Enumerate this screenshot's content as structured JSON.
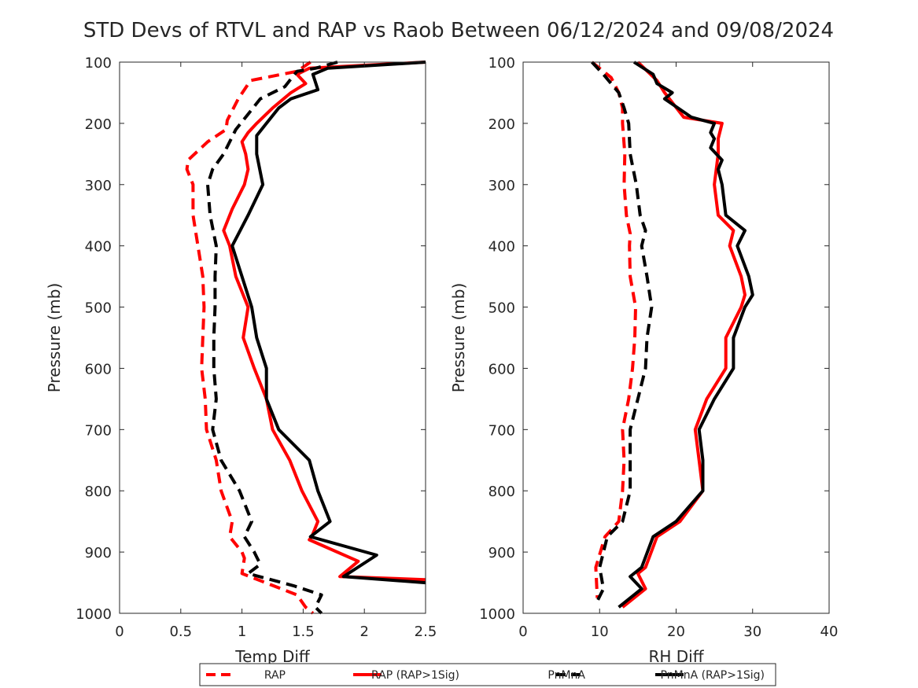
{
  "title": "STD Devs of RTVL and RAP vs Raob Between 06/12/2024 and 09/08/2024",
  "colors": {
    "rap": "#ff0000",
    "pnmna": "#000000",
    "axis": "#262626"
  },
  "legend": {
    "placement": "bottom-center",
    "entries": [
      {
        "label": "RAP",
        "color": "#ff0000",
        "style": "dashed"
      },
      {
        "label": "RAP (RAP>1Sig)",
        "color": "#ff0000",
        "style": "solid"
      },
      {
        "label": "PnMnA",
        "color": "#000000",
        "style": "dashed"
      },
      {
        "label": "PnMnA (RAP>1Sig)",
        "color": "#000000",
        "style": "solid"
      }
    ]
  },
  "chart_data": [
    {
      "type": "line",
      "xlabel": "Temp Diff",
      "ylabel": "Pressure (mb)",
      "xlim": [
        0,
        2.5
      ],
      "ylim": [
        100,
        1000
      ],
      "y_reversed": true,
      "xticks": [
        "0",
        "0.5",
        "1",
        "1.5",
        "2",
        "2.5"
      ],
      "yticks": [
        "100",
        "200",
        "300",
        "400",
        "500",
        "600",
        "700",
        "800",
        "900",
        "1000"
      ],
      "grid": false,
      "series": [
        {
          "name": "RAP",
          "color": "#ff0000",
          "dashed": true,
          "points": [
            [
              1.56,
              100
            ],
            [
              1.45,
              115
            ],
            [
              1.07,
              130
            ],
            [
              0.97,
              160
            ],
            [
              0.88,
              195
            ],
            [
              0.87,
              210
            ],
            [
              0.72,
              230
            ],
            [
              0.56,
              260
            ],
            [
              0.55,
              275
            ],
            [
              0.6,
              300
            ],
            [
              0.6,
              350
            ],
            [
              0.64,
              400
            ],
            [
              0.68,
              450
            ],
            [
              0.69,
              500
            ],
            [
              0.68,
              550
            ],
            [
              0.67,
              600
            ],
            [
              0.7,
              650
            ],
            [
              0.71,
              700
            ],
            [
              0.79,
              750
            ],
            [
              0.83,
              800
            ],
            [
              0.92,
              850
            ],
            [
              0.9,
              875
            ],
            [
              1.0,
              900
            ],
            [
              1.02,
              910
            ],
            [
              1.0,
              935
            ],
            [
              1.32,
              960
            ],
            [
              1.45,
              970
            ],
            [
              1.52,
              990
            ],
            [
              1.58,
              1000
            ]
          ]
        },
        {
          "name": "RAP (RAP>1Sig)",
          "color": "#ff0000",
          "dashed": false,
          "points": [
            [
              2.5,
              100
            ],
            [
              1.55,
              110
            ],
            [
              1.45,
              120
            ],
            [
              1.52,
              135
            ],
            [
              1.4,
              150
            ],
            [
              1.25,
              175
            ],
            [
              1.12,
              200
            ],
            [
              1.05,
              215
            ],
            [
              1.0,
              230
            ],
            [
              1.03,
              250
            ],
            [
              1.05,
              275
            ],
            [
              1.02,
              300
            ],
            [
              0.92,
              340
            ],
            [
              0.85,
              375
            ],
            [
              0.9,
              400
            ],
            [
              0.95,
              450
            ],
            [
              1.05,
              500
            ],
            [
              1.01,
              550
            ],
            [
              1.1,
              600
            ],
            [
              1.2,
              650
            ],
            [
              1.25,
              700
            ],
            [
              1.39,
              750
            ],
            [
              1.49,
              800
            ],
            [
              1.62,
              850
            ],
            [
              1.57,
              875
            ],
            [
              1.55,
              880
            ],
            [
              1.95,
              915
            ],
            [
              1.8,
              940
            ],
            [
              2.5,
              945
            ]
          ]
        },
        {
          "name": "PnMnA",
          "color": "#000000",
          "dashed": true,
          "points": [
            [
              1.78,
              100
            ],
            [
              1.6,
              110
            ],
            [
              1.45,
              115
            ],
            [
              1.35,
              140
            ],
            [
              1.15,
              160
            ],
            [
              1.05,
              185
            ],
            [
              0.95,
              210
            ],
            [
              0.85,
              250
            ],
            [
              0.76,
              275
            ],
            [
              0.72,
              300
            ],
            [
              0.74,
              350
            ],
            [
              0.79,
              400
            ],
            [
              0.78,
              450
            ],
            [
              0.78,
              500
            ],
            [
              0.77,
              550
            ],
            [
              0.77,
              600
            ],
            [
              0.79,
              650
            ],
            [
              0.76,
              700
            ],
            [
              0.83,
              750
            ],
            [
              0.98,
              800
            ],
            [
              1.08,
              850
            ],
            [
              1.02,
              875
            ],
            [
              1.1,
              900
            ],
            [
              1.15,
              920
            ],
            [
              1.05,
              935
            ],
            [
              1.42,
              955
            ],
            [
              1.65,
              970
            ],
            [
              1.6,
              990
            ],
            [
              1.65,
              1000
            ]
          ]
        },
        {
          "name": "PnMnA (RAP>1Sig)",
          "color": "#000000",
          "dashed": false,
          "points": [
            [
              2.5,
              100
            ],
            [
              1.7,
              110
            ],
            [
              1.58,
              120
            ],
            [
              1.62,
              145
            ],
            [
              1.4,
              160
            ],
            [
              1.3,
              175
            ],
            [
              1.2,
              200
            ],
            [
              1.12,
              220
            ],
            [
              1.12,
              250
            ],
            [
              1.17,
              300
            ],
            [
              1.05,
              350
            ],
            [
              0.92,
              400
            ],
            [
              1.0,
              450
            ],
            [
              1.08,
              500
            ],
            [
              1.12,
              550
            ],
            [
              1.2,
              600
            ],
            [
              1.2,
              650
            ],
            [
              1.3,
              700
            ],
            [
              1.55,
              750
            ],
            [
              1.62,
              800
            ],
            [
              1.72,
              850
            ],
            [
              1.56,
              875
            ],
            [
              2.1,
              905
            ],
            [
              1.83,
              940
            ],
            [
              2.5,
              950
            ]
          ]
        }
      ]
    },
    {
      "type": "line",
      "xlabel": "RH Diff",
      "ylabel": "Pressure (mb)",
      "xlim": [
        0,
        40
      ],
      "ylim": [
        100,
        1000
      ],
      "y_reversed": true,
      "xticks": [
        "0",
        "10",
        "20",
        "30",
        "40"
      ],
      "yticks": [
        "100",
        "200",
        "300",
        "400",
        "500",
        "600",
        "700",
        "800",
        "900",
        "1000"
      ],
      "grid": false,
      "series": [
        {
          "name": "RAP",
          "color": "#ff0000",
          "dashed": true,
          "points": [
            [
              9.0,
              100
            ],
            [
              11.5,
              125
            ],
            [
              12.5,
              150
            ],
            [
              13.0,
              175
            ],
            [
              13.0,
              200
            ],
            [
              13.3,
              250
            ],
            [
              13.2,
              300
            ],
            [
              13.5,
              350
            ],
            [
              14.0,
              380
            ],
            [
              13.9,
              400
            ],
            [
              14.0,
              450
            ],
            [
              14.7,
              500
            ],
            [
              14.6,
              550
            ],
            [
              14.3,
              600
            ],
            [
              13.8,
              650
            ],
            [
              13.0,
              700
            ],
            [
              13.2,
              750
            ],
            [
              13.0,
              800
            ],
            [
              12.5,
              850
            ],
            [
              10.7,
              875
            ],
            [
              9.5,
              925
            ],
            [
              9.7,
              975
            ]
          ]
        },
        {
          "name": "RAP (RAP>1Sig)",
          "color": "#ff0000",
          "dashed": false,
          "points": [
            [
              15.0,
              100
            ],
            [
              17.5,
              130
            ],
            [
              18.5,
              150
            ],
            [
              21.0,
              190
            ],
            [
              26.0,
              200
            ],
            [
              25.5,
              225
            ],
            [
              25.5,
              250
            ],
            [
              25.0,
              300
            ],
            [
              25.5,
              350
            ],
            [
              27.5,
              375
            ],
            [
              27.0,
              400
            ],
            [
              28.5,
              450
            ],
            [
              29.0,
              480
            ],
            [
              28.5,
              500
            ],
            [
              26.5,
              550
            ],
            [
              26.5,
              600
            ],
            [
              24.0,
              650
            ],
            [
              22.5,
              700
            ],
            [
              23.0,
              750
            ],
            [
              23.5,
              800
            ],
            [
              20.5,
              850
            ],
            [
              17.5,
              875
            ],
            [
              16.0,
              925
            ],
            [
              15.0,
              935
            ],
            [
              16.0,
              960
            ],
            [
              13.0,
              990
            ]
          ]
        },
        {
          "name": "PnMnA",
          "color": "#000000",
          "dashed": true,
          "points": [
            [
              9.0,
              100
            ],
            [
              10.5,
              120
            ],
            [
              12.5,
              150
            ],
            [
              13.2,
              175
            ],
            [
              13.8,
              200
            ],
            [
              14.0,
              250
            ],
            [
              14.8,
              300
            ],
            [
              15.3,
              350
            ],
            [
              16.0,
              375
            ],
            [
              15.5,
              400
            ],
            [
              16.2,
              450
            ],
            [
              16.8,
              500
            ],
            [
              16.2,
              550
            ],
            [
              16.0,
              600
            ],
            [
              15.0,
              650
            ],
            [
              14.0,
              700
            ],
            [
              14.0,
              750
            ],
            [
              14.0,
              800
            ],
            [
              13.0,
              850
            ],
            [
              11.0,
              875
            ],
            [
              10.0,
              925
            ],
            [
              10.5,
              960
            ],
            [
              9.5,
              985
            ]
          ]
        },
        {
          "name": "PnMnA (RAP>1Sig)",
          "color": "#000000",
          "dashed": false,
          "points": [
            [
              14.5,
              100
            ],
            [
              17.0,
              120
            ],
            [
              17.5,
              135
            ],
            [
              19.5,
              150
            ],
            [
              18.5,
              160
            ],
            [
              22.0,
              190
            ],
            [
              25.0,
              200
            ],
            [
              24.5,
              215
            ],
            [
              25.0,
              225
            ],
            [
              24.5,
              240
            ],
            [
              26.0,
              260
            ],
            [
              25.5,
              275
            ],
            [
              26.0,
              300
            ],
            [
              26.5,
              350
            ],
            [
              29.0,
              375
            ],
            [
              28.0,
              400
            ],
            [
              29.5,
              450
            ],
            [
              30.0,
              480
            ],
            [
              29.0,
              500
            ],
            [
              27.5,
              550
            ],
            [
              27.5,
              600
            ],
            [
              25.0,
              650
            ],
            [
              23.0,
              700
            ],
            [
              23.5,
              750
            ],
            [
              23.5,
              800
            ],
            [
              20.0,
              850
            ],
            [
              17.0,
              875
            ],
            [
              15.5,
              925
            ],
            [
              14.0,
              940
            ],
            [
              15.5,
              960
            ],
            [
              12.5,
              990
            ]
          ]
        }
      ]
    }
  ]
}
